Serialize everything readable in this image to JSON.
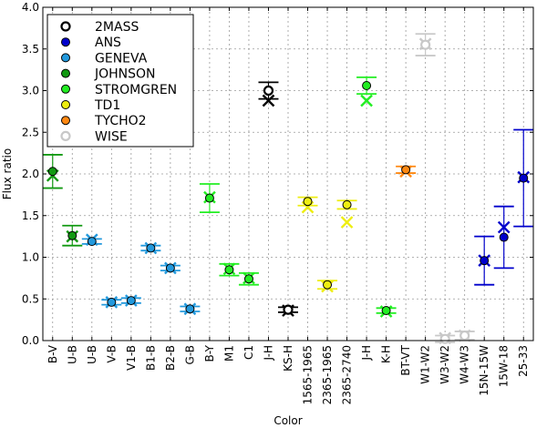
{
  "chart_data": {
    "type": "scatter",
    "xlabel": "Color",
    "ylabel": "Flux ratio",
    "ylim": [
      0.0,
      4.0
    ],
    "yticks": [
      "0.0",
      "0.5",
      "1.0",
      "1.5",
      "2.0",
      "2.5",
      "3.0",
      "3.5",
      "4.0"
    ],
    "grid": true,
    "legend_position": "top-left",
    "categories": [
      "B-V",
      "U-B",
      "U-B",
      "V-B",
      "V1-B",
      "B1-B",
      "B2-B",
      "G-B",
      "B-Y",
      "M1",
      "C1",
      "J-H",
      "KS-H",
      "1565-1965",
      "2365-1965",
      "2365-2740",
      "J-H",
      "K-H",
      "BT-VT",
      "W1-W2",
      "W3-W2",
      "W4-W3",
      "15N-15W",
      "15W-18",
      "25-33"
    ],
    "series": [
      {
        "name": "2MASS",
        "color": "#000000",
        "marker": "open"
      },
      {
        "name": "ANS",
        "color": "#0000cc",
        "marker": "filled"
      },
      {
        "name": "GENEVA",
        "color": "#2299dd",
        "marker": "filled"
      },
      {
        "name": "JOHNSON",
        "color": "#119911",
        "marker": "filled"
      },
      {
        "name": "STROMGREN",
        "color": "#22ee22",
        "marker": "filled"
      },
      {
        "name": "TD1",
        "color": "#eeee11",
        "marker": "filled"
      },
      {
        "name": "TYCHO2",
        "color": "#ff8811",
        "marker": "filled"
      },
      {
        "name": "WISE",
        "color": "#c8c8c8",
        "marker": "open"
      }
    ],
    "points": [
      {
        "category": "B-V",
        "series": "JOHNSON",
        "observed": 2.03,
        "error": 0.2,
        "model": 1.98
      },
      {
        "category": "U-B",
        "series": "JOHNSON",
        "observed": 1.26,
        "error": 0.12,
        "model": 1.25
      },
      {
        "category": "U-B",
        "series": "GENEVA",
        "observed": 1.19,
        "error": 0.03,
        "model": 1.21
      },
      {
        "category": "V-B",
        "series": "GENEVA",
        "observed": 0.46,
        "error": 0.03,
        "model": 0.46
      },
      {
        "category": "V1-B",
        "series": "GENEVA",
        "observed": 0.48,
        "error": 0.03,
        "model": 0.48
      },
      {
        "category": "B1-B",
        "series": "GENEVA",
        "observed": 1.11,
        "error": 0.03,
        "model": 1.11
      },
      {
        "category": "B2-B",
        "series": "GENEVA",
        "observed": 0.87,
        "error": 0.03,
        "model": 0.87
      },
      {
        "category": "G-B",
        "series": "GENEVA",
        "observed": 0.38,
        "error": 0.03,
        "model": 0.38
      },
      {
        "category": "B-Y",
        "series": "STROMGREN",
        "observed": 1.71,
        "error": 0.17,
        "model": 1.72
      },
      {
        "category": "M1",
        "series": "STROMGREN",
        "observed": 0.85,
        "error": 0.07,
        "model": 0.86
      },
      {
        "category": "C1",
        "series": "STROMGREN",
        "observed": 0.74,
        "error": 0.07,
        "model": 0.75
      },
      {
        "category": "J-H",
        "series": "2MASS",
        "observed": 3.0,
        "error": 0.1,
        "model": 2.88
      },
      {
        "category": "KS-H",
        "series": "2MASS",
        "observed": 0.37,
        "error": 0.03,
        "model": 0.36
      },
      {
        "category": "1565-1965",
        "series": "TD1",
        "observed": 1.67,
        "error": 0.05,
        "model": 1.6
      },
      {
        "category": "2365-1965",
        "series": "TD1",
        "observed": 0.67,
        "error": 0.05,
        "model": 0.65
      },
      {
        "category": "2365-2740",
        "series": "TD1",
        "observed": 1.63,
        "error": 0.05,
        "model": 1.42
      },
      {
        "category": "J-H",
        "series": "STROMGREN",
        "observed": 3.06,
        "error": 0.1,
        "model": 2.88
      },
      {
        "category": "K-H",
        "series": "STROMGREN",
        "observed": 0.36,
        "error": 0.03,
        "model": 0.35
      },
      {
        "category": "BT-VT",
        "series": "TYCHO2",
        "observed": 2.05,
        "error": 0.04,
        "model": 2.03
      },
      {
        "category": "W1-W2",
        "series": "WISE",
        "observed": 3.55,
        "error": 0.13,
        "model": 3.56
      },
      {
        "category": "W3-W2",
        "series": "WISE",
        "observed": 0.02,
        "error": 0.04,
        "model": 0.03
      },
      {
        "category": "W4-W3",
        "series": "WISE",
        "observed": 0.06,
        "error": 0.05,
        "model": 0.06
      },
      {
        "category": "15N-15W",
        "series": "ANS",
        "observed": 0.96,
        "error": 0.29,
        "model": 0.96
      },
      {
        "category": "15W-18",
        "series": "ANS",
        "observed": 1.24,
        "error": 0.37,
        "model": 1.36
      },
      {
        "category": "25-33",
        "series": "ANS",
        "observed": 1.95,
        "error": 0.58,
        "model": 1.96
      }
    ]
  }
}
